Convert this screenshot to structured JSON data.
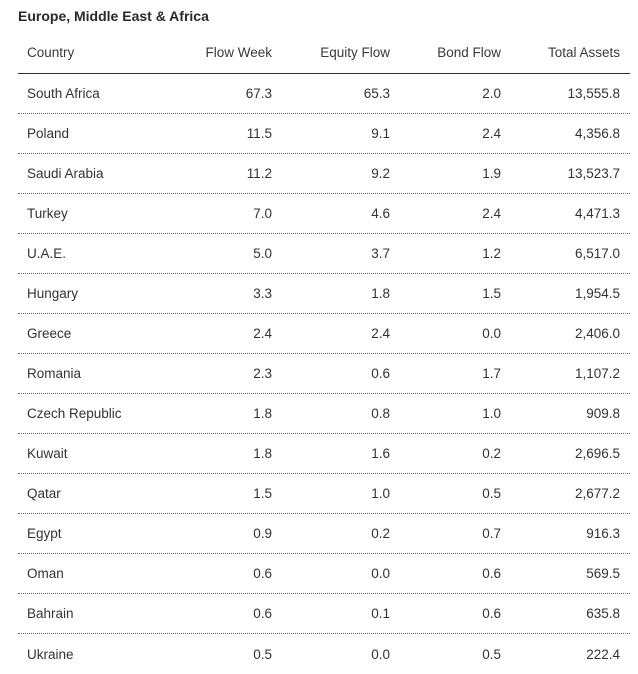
{
  "title": "Europe, Middle East & Africa",
  "columns": [
    "Country",
    "Flow Week",
    "Equity Flow",
    "Bond Flow",
    "Total Assets"
  ],
  "rows": [
    [
      "South Africa",
      "67.3",
      "65.3",
      "2.0",
      "13,555.8"
    ],
    [
      "Poland",
      "11.5",
      "9.1",
      "2.4",
      "4,356.8"
    ],
    [
      "Saudi Arabia",
      "11.2",
      "9.2",
      "1.9",
      "13,523.7"
    ],
    [
      "Turkey",
      "7.0",
      "4.6",
      "2.4",
      "4,471.3"
    ],
    [
      "U.A.E.",
      "5.0",
      "3.7",
      "1.2",
      "6,517.0"
    ],
    [
      "Hungary",
      "3.3",
      "1.8",
      "1.5",
      "1,954.5"
    ],
    [
      "Greece",
      "2.4",
      "2.4",
      "0.0",
      "2,406.0"
    ],
    [
      "Romania",
      "2.3",
      "0.6",
      "1.7",
      "1,107.2"
    ],
    [
      "Czech Republic",
      "1.8",
      "0.8",
      "1.0",
      "909.8"
    ],
    [
      "Kuwait",
      "1.8",
      "1.6",
      "0.2",
      "2,696.5"
    ],
    [
      "Qatar",
      "1.5",
      "1.0",
      "0.5",
      "2,677.2"
    ],
    [
      "Egypt",
      "0.9",
      "0.2",
      "0.7",
      "916.3"
    ],
    [
      "Oman",
      "0.6",
      "0.0",
      "0.6",
      "569.5"
    ],
    [
      "Bahrain",
      "0.6",
      "0.1",
      "0.6",
      "635.8"
    ],
    [
      "Ukraine",
      "0.5",
      "0.0",
      "0.5",
      "222.4"
    ]
  ]
}
